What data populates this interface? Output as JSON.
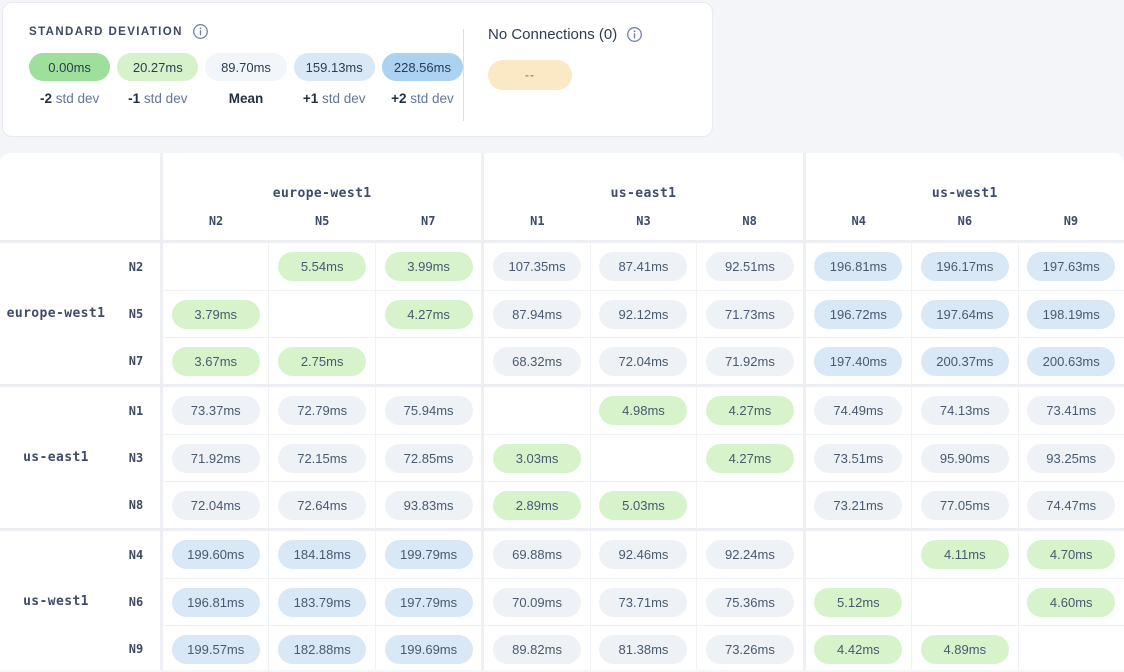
{
  "legend": {
    "title": "STANDARD DEVIATION",
    "items": [
      {
        "value": "0.00ms",
        "bold": "-2",
        "rest": "std dev",
        "color": "#9fdf9c"
      },
      {
        "value": "20.27ms",
        "bold": "-1",
        "rest": "std dev",
        "color": "#d5f2cb"
      },
      {
        "value": "89.70ms",
        "bold": "Mean",
        "rest": "",
        "color": "#f2f5f9"
      },
      {
        "value": "159.13ms",
        "bold": "+1",
        "rest": "std dev",
        "color": "#d9e8f7"
      },
      {
        "value": "228.56ms",
        "bold": "+2",
        "rest": "std dev",
        "color": "#abd2f0"
      }
    ]
  },
  "no_connections": {
    "title": "No Connections (0)",
    "pill": "--",
    "color": "#fbe9c6"
  },
  "matrix": {
    "tier_colors": {
      "low": "#d6f3cc",
      "mid": "#eef1f6",
      "high": "#d9e8f6"
    },
    "column_groups": [
      {
        "region": "europe-west1",
        "nodes": [
          "N2",
          "N5",
          "N7"
        ]
      },
      {
        "region": "us-east1",
        "nodes": [
          "N1",
          "N3",
          "N8"
        ]
      },
      {
        "region": "us-west1",
        "nodes": [
          "N4",
          "N6",
          "N9"
        ]
      }
    ],
    "row_groups": [
      {
        "region": "europe-west1",
        "rows": [
          {
            "node": "N2",
            "cells": [
              null,
              {
                "value": "5.54ms",
                "tier": "low"
              },
              {
                "value": "3.99ms",
                "tier": "low"
              },
              {
                "value": "107.35ms",
                "tier": "mid"
              },
              {
                "value": "87.41ms",
                "tier": "mid"
              },
              {
                "value": "92.51ms",
                "tier": "mid"
              },
              {
                "value": "196.81ms",
                "tier": "high"
              },
              {
                "value": "196.17ms",
                "tier": "high"
              },
              {
                "value": "197.63ms",
                "tier": "high"
              }
            ]
          },
          {
            "node": "N5",
            "cells": [
              {
                "value": "3.79ms",
                "tier": "low"
              },
              null,
              {
                "value": "4.27ms",
                "tier": "low"
              },
              {
                "value": "87.94ms",
                "tier": "mid"
              },
              {
                "value": "92.12ms",
                "tier": "mid"
              },
              {
                "value": "71.73ms",
                "tier": "mid"
              },
              {
                "value": "196.72ms",
                "tier": "high"
              },
              {
                "value": "197.64ms",
                "tier": "high"
              },
              {
                "value": "198.19ms",
                "tier": "high"
              }
            ]
          },
          {
            "node": "N7",
            "cells": [
              {
                "value": "3.67ms",
                "tier": "low"
              },
              {
                "value": "2.75ms",
                "tier": "low"
              },
              null,
              {
                "value": "68.32ms",
                "tier": "mid"
              },
              {
                "value": "72.04ms",
                "tier": "mid"
              },
              {
                "value": "71.92ms",
                "tier": "mid"
              },
              {
                "value": "197.40ms",
                "tier": "high"
              },
              {
                "value": "200.37ms",
                "tier": "high"
              },
              {
                "value": "200.63ms",
                "tier": "high"
              }
            ]
          }
        ]
      },
      {
        "region": "us-east1",
        "rows": [
          {
            "node": "N1",
            "cells": [
              {
                "value": "73.37ms",
                "tier": "mid"
              },
              {
                "value": "72.79ms",
                "tier": "mid"
              },
              {
                "value": "75.94ms",
                "tier": "mid"
              },
              null,
              {
                "value": "4.98ms",
                "tier": "low"
              },
              {
                "value": "4.27ms",
                "tier": "low"
              },
              {
                "value": "74.49ms",
                "tier": "mid"
              },
              {
                "value": "74.13ms",
                "tier": "mid"
              },
              {
                "value": "73.41ms",
                "tier": "mid"
              }
            ]
          },
          {
            "node": "N3",
            "cells": [
              {
                "value": "71.92ms",
                "tier": "mid"
              },
              {
                "value": "72.15ms",
                "tier": "mid"
              },
              {
                "value": "72.85ms",
                "tier": "mid"
              },
              {
                "value": "3.03ms",
                "tier": "low"
              },
              null,
              {
                "value": "4.27ms",
                "tier": "low"
              },
              {
                "value": "73.51ms",
                "tier": "mid"
              },
              {
                "value": "95.90ms",
                "tier": "mid"
              },
              {
                "value": "93.25ms",
                "tier": "mid"
              }
            ]
          },
          {
            "node": "N8",
            "cells": [
              {
                "value": "72.04ms",
                "tier": "mid"
              },
              {
                "value": "72.64ms",
                "tier": "mid"
              },
              {
                "value": "93.83ms",
                "tier": "mid"
              },
              {
                "value": "2.89ms",
                "tier": "low"
              },
              {
                "value": "5.03ms",
                "tier": "low"
              },
              null,
              {
                "value": "73.21ms",
                "tier": "mid"
              },
              {
                "value": "77.05ms",
                "tier": "mid"
              },
              {
                "value": "74.47ms",
                "tier": "mid"
              }
            ]
          }
        ]
      },
      {
        "region": "us-west1",
        "rows": [
          {
            "node": "N4",
            "cells": [
              {
                "value": "199.60ms",
                "tier": "high"
              },
              {
                "value": "184.18ms",
                "tier": "high"
              },
              {
                "value": "199.79ms",
                "tier": "high"
              },
              {
                "value": "69.88ms",
                "tier": "mid"
              },
              {
                "value": "92.46ms",
                "tier": "mid"
              },
              {
                "value": "92.24ms",
                "tier": "mid"
              },
              null,
              {
                "value": "4.11ms",
                "tier": "low"
              },
              {
                "value": "4.70ms",
                "tier": "low"
              }
            ]
          },
          {
            "node": "N6",
            "cells": [
              {
                "value": "196.81ms",
                "tier": "high"
              },
              {
                "value": "183.79ms",
                "tier": "high"
              },
              {
                "value": "197.79ms",
                "tier": "high"
              },
              {
                "value": "70.09ms",
                "tier": "mid"
              },
              {
                "value": "73.71ms",
                "tier": "mid"
              },
              {
                "value": "75.36ms",
                "tier": "mid"
              },
              {
                "value": "5.12ms",
                "tier": "low"
              },
              null,
              {
                "value": "4.60ms",
                "tier": "low"
              }
            ]
          },
          {
            "node": "N9",
            "cells": [
              {
                "value": "199.57ms",
                "tier": "high"
              },
              {
                "value": "182.88ms",
                "tier": "high"
              },
              {
                "value": "199.69ms",
                "tier": "high"
              },
              {
                "value": "89.82ms",
                "tier": "mid"
              },
              {
                "value": "81.38ms",
                "tier": "mid"
              },
              {
                "value": "73.26ms",
                "tier": "mid"
              },
              {
                "value": "4.42ms",
                "tier": "low"
              },
              {
                "value": "4.89ms",
                "tier": "low"
              },
              null
            ]
          }
        ]
      }
    ]
  }
}
